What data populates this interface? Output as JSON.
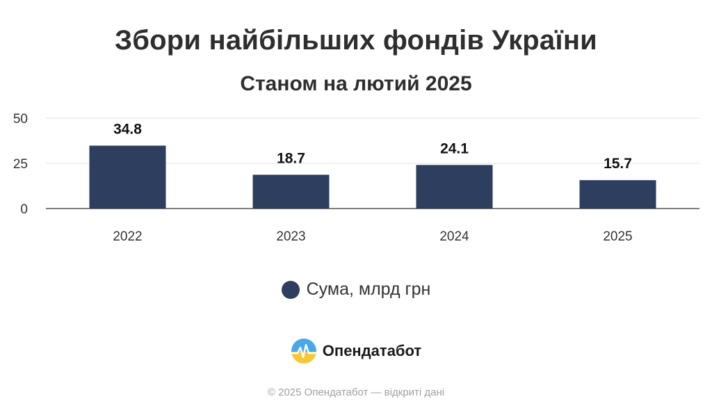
{
  "title": "Збори найбільших фондів України",
  "subtitle": "Станом на лютий 2025",
  "legend": {
    "label": "Сума, млрд грн",
    "color": "#2e3e5f"
  },
  "brand": {
    "name": "Опендатабот",
    "logo_icon": "opendatabot-logo-icon"
  },
  "footer": "© 2025 Опендатабот — відкриті дані",
  "chart_data": {
    "type": "bar",
    "title": "Збори найбільших фондів України",
    "subtitle": "Станом на лютий 2025",
    "categories": [
      "2022",
      "2023",
      "2024",
      "2025"
    ],
    "series": [
      {
        "name": "Сума, млрд грн",
        "values": [
          34.8,
          18.7,
          24.1,
          15.7
        ],
        "color": "#2e3e5f"
      }
    ],
    "ylim": [
      0,
      50
    ],
    "yticks": [
      0,
      25,
      50
    ],
    "data_labels": [
      "34.8",
      "18.7",
      "24.1",
      "15.7"
    ],
    "grid": true,
    "legend_position": "bottom"
  }
}
